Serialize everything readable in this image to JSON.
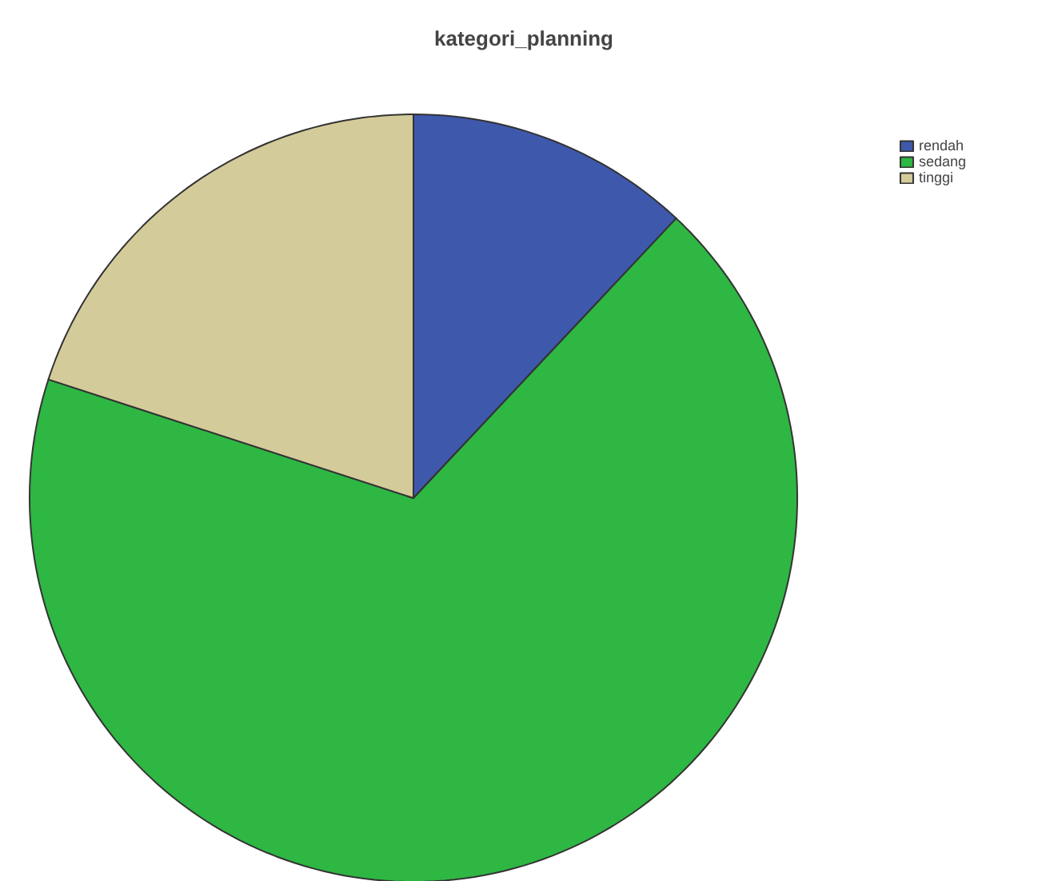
{
  "chart_data": {
    "type": "pie",
    "title": "kategori_planning",
    "categories": [
      "rendah",
      "sedang",
      "tinggi"
    ],
    "values": [
      12,
      68,
      20
    ],
    "colors": [
      "#3e58ac",
      "#2eb743",
      "#d4cb9a"
    ],
    "legend": "top right"
  }
}
